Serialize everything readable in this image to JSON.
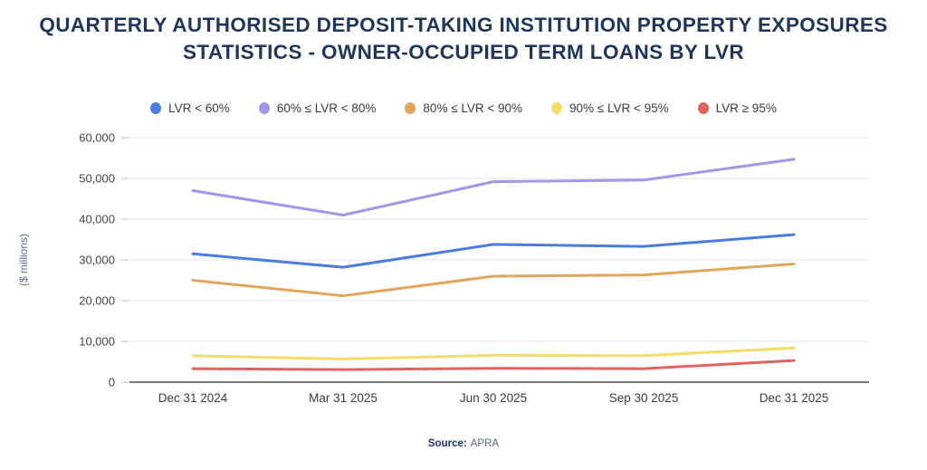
{
  "header": {
    "title_line1": "QUARTERLY AUTHORISED DEPOSIT-TAKING INSTITUTION PROPERTY EXPOSURES",
    "title_line2": "STATISTICS - OWNER-OCCUPIED TERM LOANS BY LVR"
  },
  "footer": {
    "source_label": "Source:",
    "source_value": "APRA"
  },
  "colors": {
    "title": "#1e355e",
    "axis_text": "#454545",
    "grid_line": "#e4e4e4",
    "axis_line": "#4a4a4a",
    "tick_mark": "#c9c9c9",
    "ylabel_text": "#5b6b96",
    "background": "#ffffff"
  },
  "chart_data": {
    "type": "line",
    "title": "QUARTERLY AUTHORISED DEPOSIT-TAKING INSTITUTION PROPERTY EXPOSURES STATISTICS - OWNER-OCCUPIED TERM LOANS BY LVR",
    "xlabel": "",
    "ylabel": "($ millions)",
    "categories": [
      "Dec 31 2024",
      "Mar 31 2025",
      "Jun 30 2025",
      "Sep 30 2025",
      "Dec 31 2025"
    ],
    "series": [
      {
        "name": "LVR < 60%",
        "color": "#4a7be0",
        "values": [
          31500,
          28200,
          33800,
          33300,
          36200
        ]
      },
      {
        "name": "60% ≤ LVR < 80%",
        "color": "#a495eb",
        "values": [
          47000,
          41000,
          49200,
          49600,
          54700
        ]
      },
      {
        "name": "80% ≤ LVR < 90%",
        "color": "#e2a55d",
        "values": [
          25000,
          21200,
          26000,
          26300,
          29000
        ]
      },
      {
        "name": "90% ≤ LVR < 95%",
        "color": "#f7db68",
        "values": [
          6500,
          5700,
          6600,
          6500,
          8400
        ]
      },
      {
        "name": "LVR ≥ 95%",
        "color": "#e2625f",
        "values": [
          3300,
          3100,
          3400,
          3300,
          5300
        ]
      }
    ],
    "ylim": [
      0,
      60000
    ],
    "ytick_step": 10000,
    "grid": true,
    "legend_position": "top",
    "source": "APRA"
  }
}
